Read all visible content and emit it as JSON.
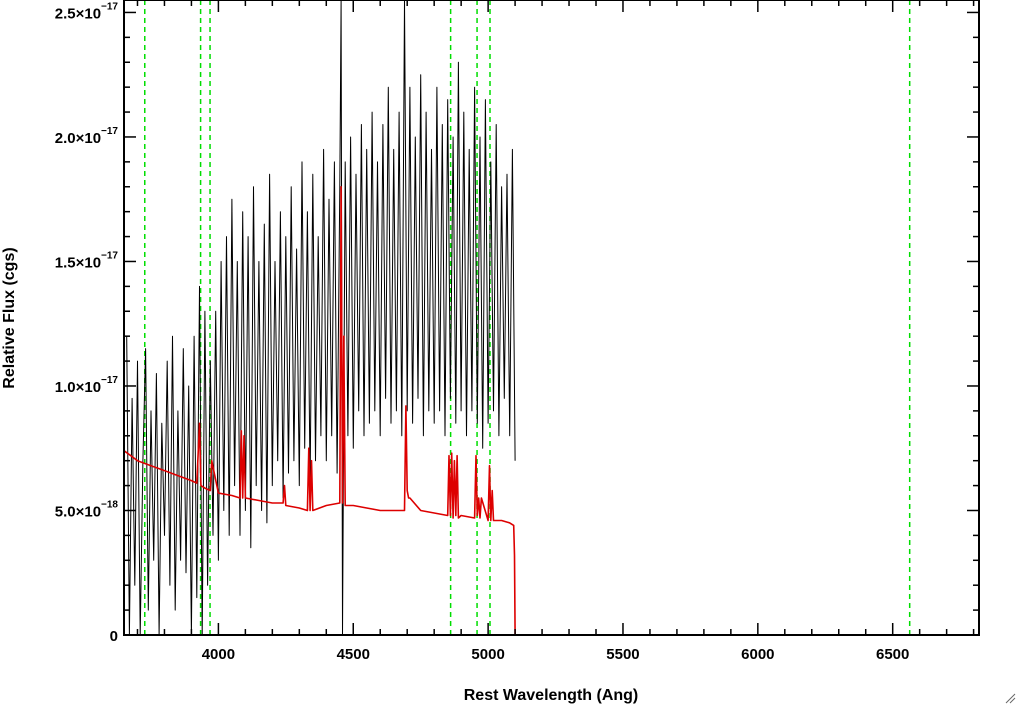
{
  "chart_data": {
    "type": "line",
    "title": "",
    "xlabel": "Rest Wavelength (Ang)",
    "ylabel": "Relative Flux (cgs)",
    "xlim": [
      3650,
      6820
    ],
    "ylim": [
      0,
      2.55e-17
    ],
    "x_ticks": [
      {
        "value": 4000,
        "label": "4000"
      },
      {
        "value": 4500,
        "label": "4500"
      },
      {
        "value": 5000,
        "label": "5000"
      },
      {
        "value": 5500,
        "label": "5500"
      },
      {
        "value": 6000,
        "label": "6000"
      },
      {
        "value": 6500,
        "label": "6500"
      }
    ],
    "y_ticks": [
      {
        "value": 0,
        "mantissa": "0",
        "exponent": ""
      },
      {
        "value": 5e-18,
        "mantissa": "5.0×10",
        "exponent": "−18"
      },
      {
        "value": 1e-17,
        "mantissa": "1.0×10",
        "exponent": "−17"
      },
      {
        "value": 1.5e-17,
        "mantissa": "1.5×10",
        "exponent": "−17"
      },
      {
        "value": 2e-17,
        "mantissa": "2.0×10",
        "exponent": "−17"
      },
      {
        "value": 2.5e-17,
        "mantissa": "2.5×10",
        "exponent": "−17"
      }
    ],
    "vertical_lines": {
      "color": "#00dd00",
      "style": "dashed",
      "x": [
        3727,
        3934,
        3969,
        4861,
        4959,
        5007,
        6563
      ]
    },
    "series": [
      {
        "color": "#000000",
        "x": [
          3660,
          3670,
          3680,
          3690,
          3700,
          3710,
          3720,
          3730,
          3740,
          3750,
          3760,
          3770,
          3780,
          3790,
          3800,
          3810,
          3820,
          3830,
          3840,
          3850,
          3860,
          3870,
          3880,
          3890,
          3900,
          3910,
          3920,
          3930,
          3940,
          3950,
          3960,
          3970,
          3980,
          3990,
          4000,
          4010,
          4020,
          4030,
          4040,
          4050,
          4060,
          4070,
          4080,
          4090,
          4100,
          4110,
          4120,
          4130,
          4140,
          4150,
          4160,
          4170,
          4180,
          4190,
          4200,
          4210,
          4220,
          4230,
          4240,
          4250,
          4260,
          4270,
          4280,
          4290,
          4300,
          4310,
          4320,
          4330,
          4340,
          4350,
          4360,
          4370,
          4380,
          4390,
          4400,
          4410,
          4420,
          4430,
          4440,
          4450,
          4455,
          4460,
          4470,
          4480,
          4490,
          4500,
          4510,
          4520,
          4530,
          4540,
          4550,
          4560,
          4570,
          4580,
          4590,
          4600,
          4610,
          4620,
          4630,
          4640,
          4650,
          4660,
          4670,
          4680,
          4690,
          4700,
          4710,
          4720,
          4730,
          4740,
          4750,
          4760,
          4770,
          4780,
          4790,
          4800,
          4810,
          4820,
          4830,
          4840,
          4850,
          4860,
          4870,
          4880,
          4890,
          4900,
          4910,
          4920,
          4930,
          4940,
          4950,
          4960,
          4970,
          4980,
          4990,
          5000,
          5010,
          5020,
          5030,
          5040,
          5050,
          5060,
          5070,
          5080,
          5090,
          5100
        ],
        "y": [
          1.2e-17,
          0,
          9.5e-18,
          2e-18,
          1.1e-17,
          0,
          7e-18,
          1.15e-17,
          1e-18,
          9e-18,
          3e-18,
          1.05e-17,
          0,
          8.5e-18,
          4e-18,
          1.1e-17,
          2e-18,
          1.2e-17,
          1e-18,
          9e-18,
          3e-18,
          1.15e-17,
          2.5e-18,
          1e-17,
          0,
          1.2e-17,
          1.5e-18,
          1.4e-17,
          0,
          1.3e-17,
          2e-18,
          1.1e-17,
          4e-18,
          1.3e-17,
          3e-18,
          1.5e-17,
          5e-18,
          1.6e-17,
          4e-18,
          1.75e-17,
          6e-18,
          1.5e-17,
          4e-18,
          1.7e-17,
          5e-18,
          1.6e-17,
          3.5e-18,
          1.8e-17,
          6e-18,
          1.5e-17,
          5e-18,
          1.65e-17,
          4.5e-18,
          1.85e-17,
          6e-18,
          1.5e-17,
          7e-18,
          1.7e-17,
          5.5e-18,
          1.6e-17,
          6.5e-18,
          1.8e-17,
          7e-18,
          1.55e-17,
          6e-18,
          1.9e-17,
          7.5e-18,
          1.7e-17,
          6e-18,
          1.85e-17,
          7e-18,
          1.6e-17,
          8e-18,
          1.95e-17,
          7e-18,
          1.75e-17,
          8e-18,
          1.9e-17,
          6.5e-18,
          1.8e-17,
          2.55e-17,
          0,
          1.9e-17,
          8e-18,
          2e-17,
          7.5e-18,
          1.85e-17,
          9e-18,
          2.05e-17,
          8e-18,
          1.95e-17,
          8.5e-18,
          2.1e-17,
          9e-18,
          1.9e-17,
          8e-18,
          2.05e-17,
          9.5e-18,
          2.2e-17,
          8.5e-18,
          1.95e-17,
          9e-18,
          2.1e-17,
          8e-18,
          2.55e-17,
          9e-18,
          2.2e-17,
          8.5e-18,
          2e-17,
          9.5e-18,
          2.25e-17,
          8e-18,
          2.1e-17,
          9e-18,
          1.95e-17,
          8.5e-18,
          2.2e-17,
          9e-18,
          2.05e-17,
          8e-18,
          2.15e-17,
          9.5e-18,
          2e-17,
          8.5e-18,
          2.3e-17,
          9e-18,
          2.1e-17,
          8e-18,
          1.95e-17,
          9e-18,
          2.2e-17,
          8.5e-18,
          2e-17,
          7.5e-18,
          2.15e-17,
          8.5e-18,
          1.9e-17,
          9e-18,
          2.05e-17,
          8e-18,
          1.8e-17,
          9.5e-18,
          1.85e-17,
          8e-18,
          1.95e-17,
          7e-18
        ]
      },
      {
        "color": "#dd0000",
        "x": [
          3650,
          3700,
          3750,
          3800,
          3850,
          3900,
          3920,
          3930,
          3935,
          3950,
          3970,
          3975,
          4000,
          4050,
          4080,
          4085,
          4090,
          4095,
          4100,
          4150,
          4200,
          4240,
          4245,
          4250,
          4300,
          4330,
          4335,
          4340,
          4345,
          4350,
          4400,
          4450,
          4455,
          4460,
          4465,
          4470,
          4500,
          4550,
          4600,
          4650,
          4680,
          4690,
          4695,
          4700,
          4705,
          4710,
          4750,
          4800,
          4850,
          4855,
          4860,
          4865,
          4870,
          4875,
          4880,
          4885,
          4890,
          4900,
          4950,
          4955,
          4960,
          4965,
          4970,
          4975,
          5000,
          5005,
          5010,
          5015,
          5020,
          5050,
          5080,
          5095,
          5098,
          5100,
          5105,
          5200,
          5400,
          5600,
          5800,
          6000,
          6200,
          6400,
          6600,
          6800,
          6820
        ],
        "y": [
          7.4e-18,
          7e-18,
          6.8e-18,
          6.6e-18,
          6.4e-18,
          6.2e-18,
          6.1e-18,
          8.5e-18,
          6e-18,
          5.9e-18,
          5.8e-18,
          7e-18,
          5.7e-18,
          5.6e-18,
          5.5e-18,
          8.2e-18,
          5.5e-18,
          8e-18,
          5.5e-18,
          5.4e-18,
          5.3e-18,
          5.3e-18,
          6e-18,
          5.2e-18,
          5.1e-18,
          5e-18,
          7.5e-18,
          5e-18,
          7e-18,
          5e-18,
          5.2e-18,
          5.3e-18,
          1.8e-17,
          5.3e-18,
          1.2e-17,
          5.2e-18,
          5.2e-18,
          5.1e-18,
          5e-18,
          5e-18,
          5e-18,
          5e-18,
          9.2e-18,
          5.8e-18,
          5.5e-18,
          5.5e-18,
          5e-18,
          4.9e-18,
          4.8e-18,
          7.2e-18,
          4.8e-18,
          7.3e-18,
          4.7e-18,
          7e-18,
          4.8e-18,
          7.2e-18,
          4.7e-18,
          4.8e-18,
          4.7e-18,
          7.2e-18,
          4.8e-18,
          5.5e-18,
          4.7e-18,
          5.5e-18,
          4.6e-18,
          6.8e-18,
          4.6e-18,
          5.8e-18,
          4.6e-18,
          4.6e-18,
          4.5e-18,
          4.4e-18,
          3.2e-18,
          0,
          0,
          0,
          0,
          0,
          0,
          0,
          0,
          0,
          0,
          0,
          0
        ]
      }
    ]
  }
}
